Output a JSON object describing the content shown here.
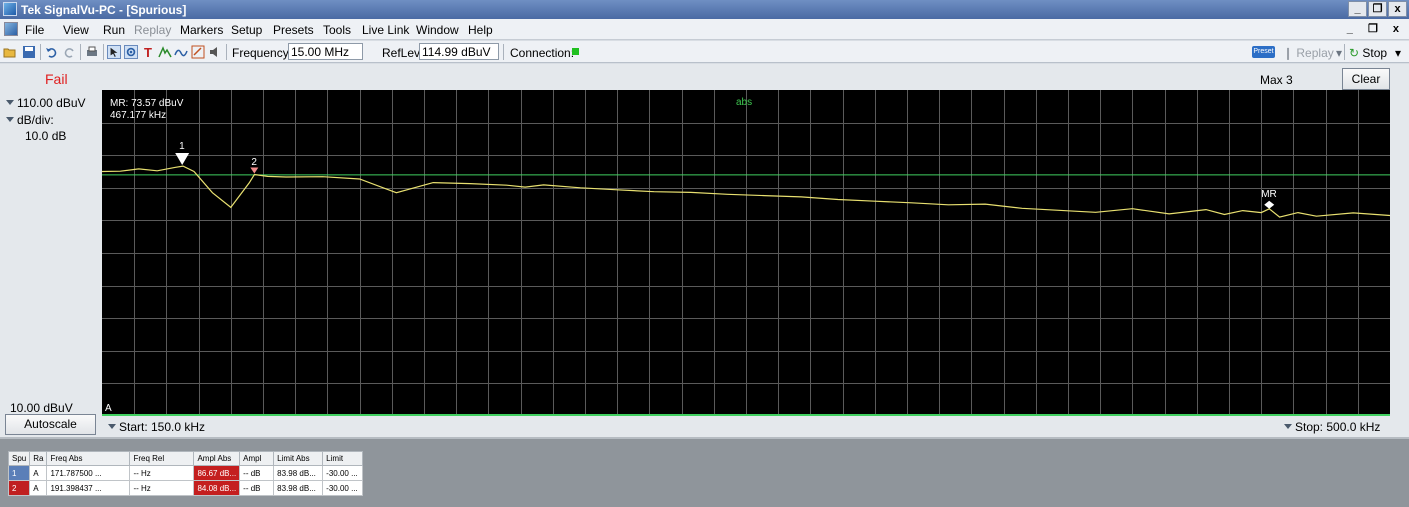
{
  "window": {
    "title": "Tek SignalVu-PC - [Spurious]",
    "buttons": [
      "_",
      "̅",
      "x"
    ]
  },
  "menu": {
    "items": [
      "File",
      "View",
      "Run",
      "Replay",
      "Markers",
      "Setup",
      "Presets",
      "Tools",
      "Live Link",
      "Window",
      "Help"
    ],
    "disabled": [
      "Replay"
    ]
  },
  "toolbar": {
    "frequency_label": "Frequency:",
    "frequency_value": "15.00 MHz",
    "reflev_label": "RefLev:",
    "reflev_value": "114.99 dBuV",
    "connection_label": "Connection:",
    "preset_badge": "Preset",
    "replay_label": "Replay",
    "stop_label": "Stop"
  },
  "display": {
    "status": "Fail",
    "trace_label": "Max 3",
    "clear_label": "Clear",
    "ref_level": "110.00 dBuV",
    "scale_label": "dB/div:",
    "scale_value": "10.0 dB",
    "bottom_level": "10.00 dBuV",
    "autoscale_label": "Autoscale",
    "start": "Start:  150.0 kHz",
    "stop": "Stop:  500.0 kHz",
    "mr_readout_level": "MR: 73.57 dBuV",
    "mr_readout_freq": "467.177 kHz",
    "abs_label": "abs",
    "trace_id": "A",
    "markers": [
      {
        "label": "1",
        "freq_khz": 171.7875,
        "level_dbuv": 86.67
      },
      {
        "label": "2",
        "freq_khz": 191.398,
        "level_dbuv": 84.08
      },
      {
        "label": "MR",
        "freq_khz": 467.177,
        "level_dbuv": 73.57
      }
    ],
    "colors": {
      "trace": "#e8e070",
      "limit": "#40d060",
      "grid": "#5a5a5a",
      "background": "#000000",
      "fail": "#e02020"
    }
  },
  "chart_data": {
    "type": "line",
    "xlim": [
      150,
      500
    ],
    "ylim": [
      10,
      110
    ],
    "x_unit": "kHz",
    "y_unit": "dBuV",
    "grid": true,
    "limit_line": 83.98,
    "series": [
      {
        "values_x": [
          150,
          155,
          160,
          165,
          170,
          172,
          175,
          180,
          185,
          190,
          191.4,
          195,
          200,
          210,
          220,
          230,
          240,
          250,
          260,
          265,
          270,
          280,
          290,
          300,
          310,
          320,
          330,
          340,
          350,
          360,
          370,
          380,
          390,
          400,
          410,
          420,
          430,
          440,
          450,
          455,
          460,
          465,
          467.2,
          470,
          475,
          480,
          490,
          500
        ],
        "values_y": [
          85.0,
          85.1,
          85.8,
          85.2,
          86.3,
          86.67,
          85.0,
          78.5,
          74.0,
          81.5,
          84.08,
          83.5,
          83.3,
          83.4,
          82.7,
          78.5,
          81.6,
          81.3,
          80.8,
          80.2,
          80.9,
          80.0,
          79.4,
          78.8,
          78.6,
          78.0,
          77.6,
          77.2,
          76.4,
          75.9,
          75.4,
          74.8,
          75.0,
          73.7,
          73.1,
          72.5,
          73.6,
          72.0,
          73.3,
          71.8,
          73.0,
          72.4,
          73.57,
          71.0,
          72.4,
          71.3,
          72.3,
          71.5
        ]
      }
    ]
  },
  "results_table": {
    "headers": [
      "Spu",
      "Ra",
      "Freq Abs",
      "Freq Rel",
      "Ampl Abs",
      "Ampl",
      "Limit Abs",
      "Limit"
    ],
    "rows": [
      [
        "1",
        "A",
        "171.787500 ...",
        "-- Hz",
        "86.67 dB...",
        "-- dB",
        "83.98 dB...",
        "-30.00 ..."
      ],
      [
        "2",
        "A",
        "191.398437 ...",
        "-- Hz",
        "84.08 dB...",
        "-- dB",
        "83.98 dB...",
        "-30.00 ..."
      ]
    ]
  }
}
